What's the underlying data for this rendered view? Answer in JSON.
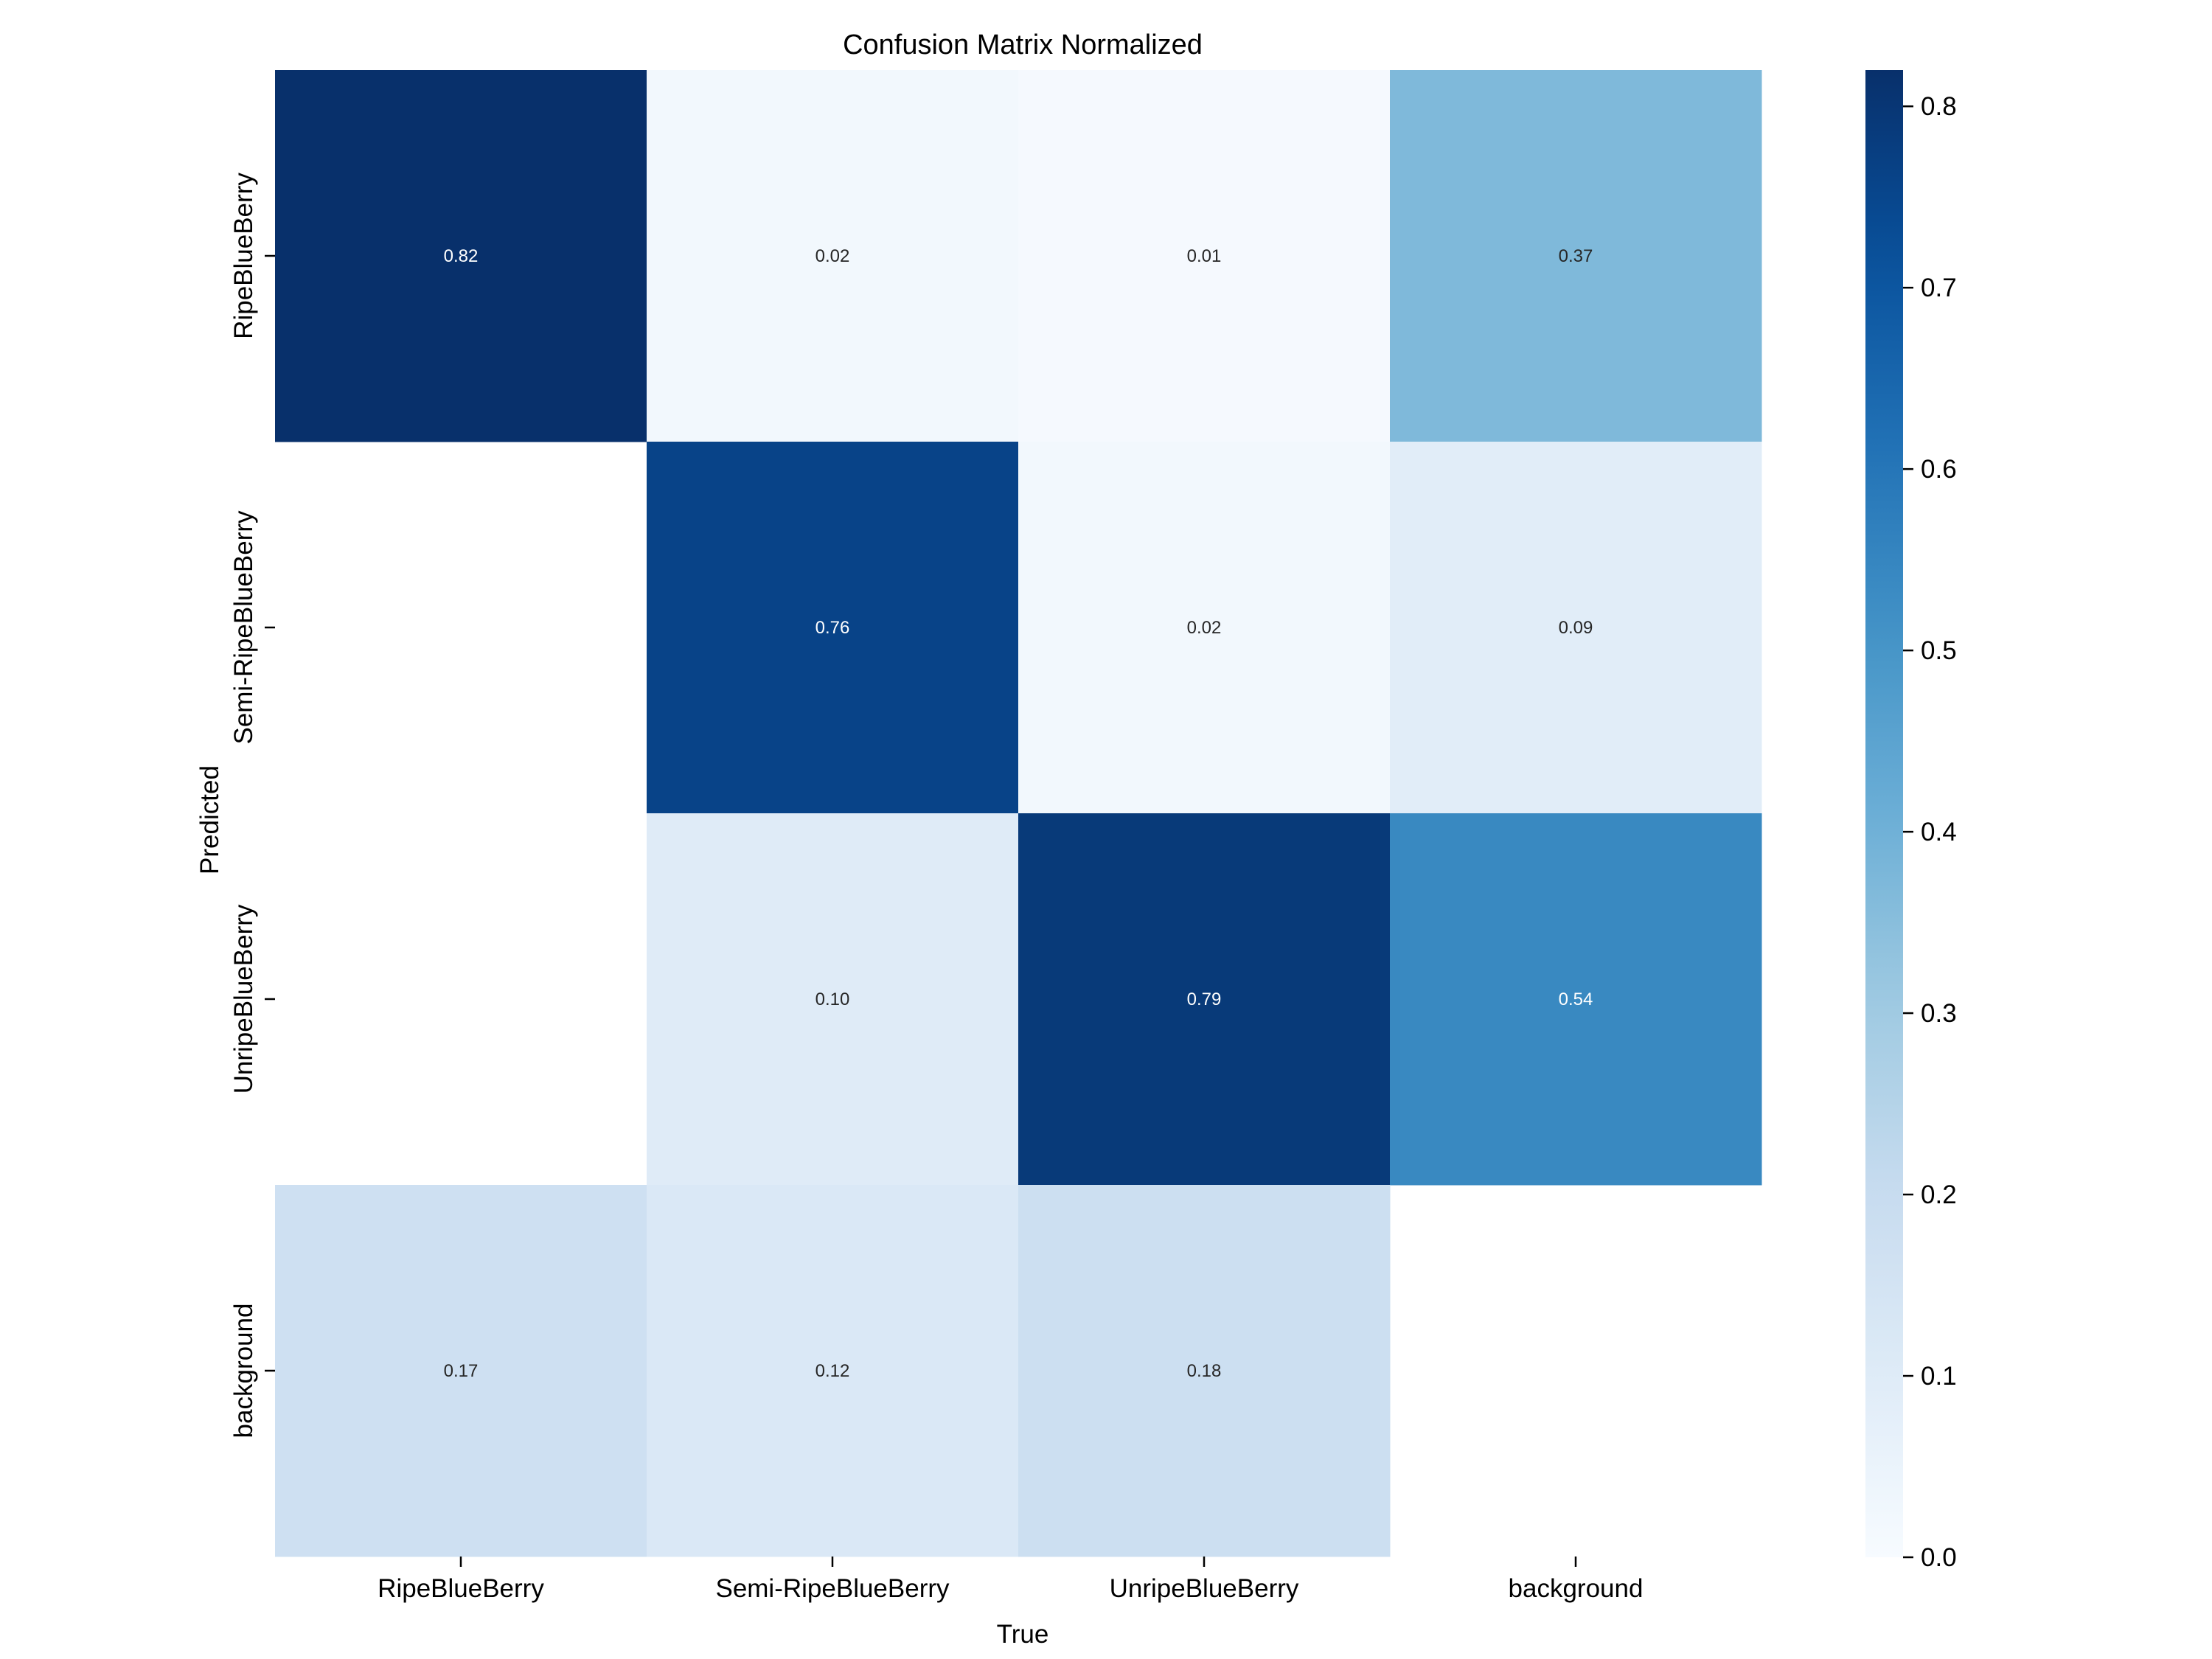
{
  "chart_data": {
    "type": "heatmap",
    "title": "Confusion Matrix Normalized",
    "xlabel": "True",
    "ylabel": "Predicted",
    "x_categories": [
      "RipeBlueBerry",
      "Semi-RipeBlueBerry",
      "UnripeBlueBerry",
      "background"
    ],
    "y_categories": [
      "RipeBlueBerry",
      "Semi-RipeBlueBerry",
      "UnripeBlueBerry",
      "background"
    ],
    "values": [
      [
        0.82,
        0.02,
        0.01,
        0.37
      ],
      [
        null,
        0.76,
        0.02,
        0.09
      ],
      [
        null,
        0.1,
        0.79,
        0.54
      ],
      [
        0.17,
        0.12,
        0.18,
        null
      ]
    ],
    "value_labels": [
      [
        "0.82",
        "0.02",
        "0.01",
        "0.37"
      ],
      [
        "",
        "0.76",
        "0.02",
        "0.09"
      ],
      [
        "",
        "0.10",
        "0.79",
        "0.54"
      ],
      [
        "0.17",
        "0.12",
        "0.18",
        ""
      ]
    ],
    "colormap": "Blues",
    "colorbar": {
      "vmin": 0.0,
      "vmax": 0.82,
      "ticks": [
        0.0,
        0.1,
        0.2,
        0.3,
        0.4,
        0.5,
        0.6,
        0.7,
        0.8
      ],
      "tick_labels": [
        "0.0",
        "0.1",
        "0.2",
        "0.3",
        "0.4",
        "0.5",
        "0.6",
        "0.7",
        "0.8"
      ]
    }
  }
}
